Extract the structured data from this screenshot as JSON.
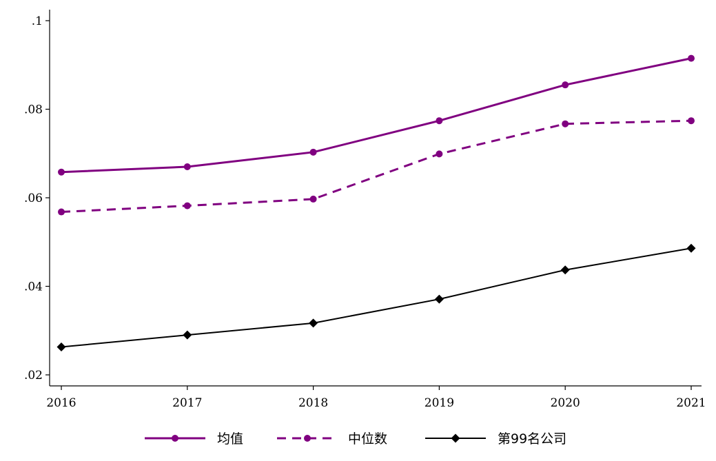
{
  "chart_data": {
    "type": "line",
    "title": "",
    "xlabel": "",
    "ylabel": "",
    "x": [
      2016,
      2017,
      2018,
      2019,
      2020,
      2021
    ],
    "x_tick_labels": [
      "2016",
      "2017",
      "2018",
      "2019",
      "2020",
      "2021"
    ],
    "y_ticks": [
      0.02,
      0.04,
      0.06,
      0.08,
      0.1
    ],
    "y_tick_labels": [
      ".02",
      ".04",
      ".06",
      ".08",
      ".1"
    ],
    "ylim": [
      0.02,
      0.1
    ],
    "grid": false,
    "legend_position": "bottom",
    "series": [
      {
        "name": "均值",
        "values": [
          0.0658,
          0.067,
          0.0703,
          0.0774,
          0.0855,
          0.0915
        ],
        "color": "#800080",
        "line_style": "solid",
        "marker": "circle"
      },
      {
        "name": "中位数",
        "values": [
          0.0568,
          0.0582,
          0.0597,
          0.0699,
          0.0767,
          0.0774
        ],
        "color": "#800080",
        "line_style": "dashed",
        "marker": "circle"
      },
      {
        "name": "第99名公司",
        "values": [
          0.0263,
          0.029,
          0.0317,
          0.0371,
          0.0437,
          0.0486
        ],
        "color": "#000000",
        "line_style": "solid",
        "marker": "diamond"
      }
    ]
  }
}
